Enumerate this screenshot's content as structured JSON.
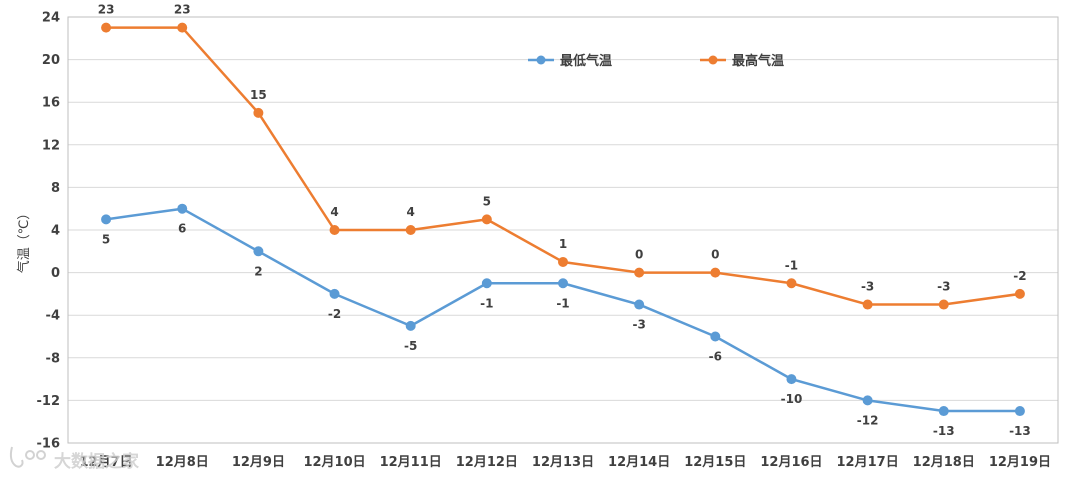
{
  "chart_data": {
    "type": "line",
    "ylabel": "气温（℃）",
    "ylim": [
      -16,
      24
    ],
    "yticks": [
      24,
      20,
      16,
      12,
      8,
      4,
      0,
      -4,
      -8,
      -12,
      -16
    ],
    "grid": true,
    "legend_position": "top-center",
    "categories": [
      "12月7日",
      "12月8日",
      "12月9日",
      "12月10日",
      "12月11日",
      "12月12日",
      "12月13日",
      "12月14日",
      "12月15日",
      "12月16日",
      "12月17日",
      "12月18日",
      "12月19日"
    ],
    "series": [
      {
        "name": "最低气温",
        "color": "#5b9bd5",
        "labels_position": "below",
        "values": [
          5,
          6,
          2,
          -2,
          -5,
          -1,
          -1,
          -3,
          -6,
          -10,
          -12,
          -13,
          -13
        ]
      },
      {
        "name": "最高气温",
        "color": "#ed7d31",
        "labels_position": "above",
        "values": [
          23,
          23,
          15,
          4,
          4,
          5,
          1,
          0,
          0,
          -1,
          -3,
          -3,
          -2
        ]
      }
    ]
  },
  "watermark": {
    "text": "大数据之家"
  }
}
